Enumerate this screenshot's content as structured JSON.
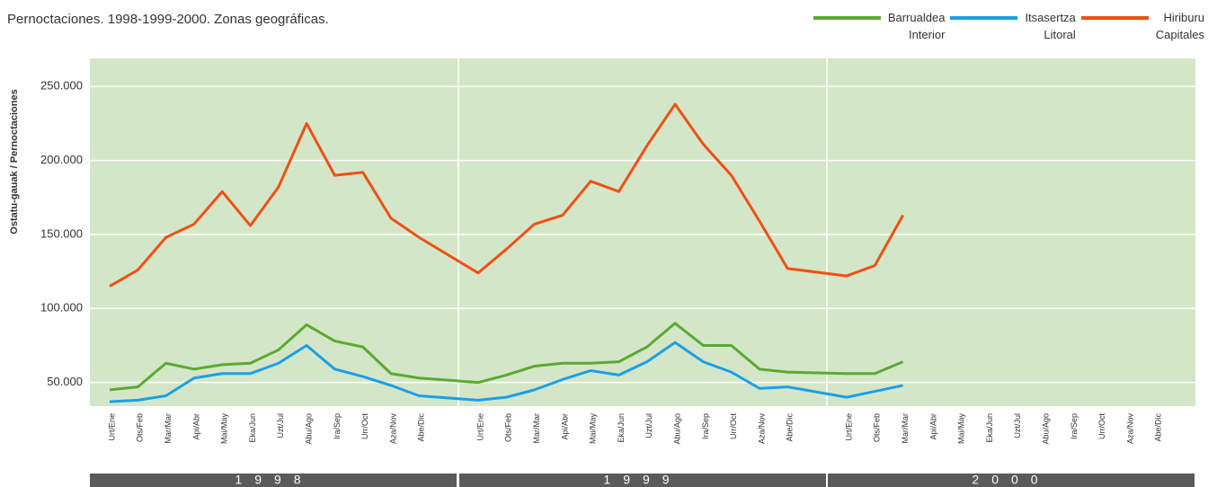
{
  "chart_data": {
    "type": "line",
    "title": "Pernoctaciones. 1998-1999-2000. Zonas geográficas.",
    "y_label": "Ostatu-gauak / Pernoctaciones",
    "years": [
      "1998",
      "1999",
      "2000"
    ],
    "categories": [
      "Urt/Ene",
      "Ots/Feb",
      "Mar/Mar",
      "Api/Abr",
      "Mai/May",
      "Eka/Jun",
      "Uzt/Jul",
      "Abu/Ago",
      "Ira/Sep",
      "Urr/Oct",
      "Aza/Nov",
      "Abe/Dic",
      "Urt/Ene",
      "Ots/Feb",
      "Mar/Mar",
      "Api/Abr",
      "Mai/May",
      "Eka/Jun",
      "Uzt/Jul",
      "Abu/Ago",
      "Ira/Sep",
      "Urr/Oct",
      "Aza/Nov",
      "Abe/Dic",
      "Urt/Ene",
      "Ots/Feb",
      "Mar/Mar",
      "Api/Abr",
      "Mai/May",
      "Eka/Jun",
      "Uzt/Jul",
      "Abu/Ago",
      "Ira/Sep",
      "Urr/Oct",
      "Aza/Nov",
      "Abe/Dic"
    ],
    "series": [
      {
        "name": "Barrualdea\nInterior",
        "color": "#5aaa32",
        "values": [
          45000,
          47000,
          63000,
          59000,
          62000,
          63000,
          72000,
          89000,
          78000,
          74000,
          56000,
          53000,
          50000,
          55000,
          61000,
          63000,
          63000,
          64000,
          74000,
          90000,
          75000,
          75000,
          59000,
          57000,
          56000,
          56000,
          64000,
          null,
          null,
          null,
          null,
          null,
          null,
          null,
          null,
          null
        ]
      },
      {
        "name": "Itsasertza\nLitoral",
        "color": "#1aa0e6",
        "values": [
          37000,
          38000,
          41000,
          53000,
          56000,
          56000,
          63000,
          75000,
          59000,
          54000,
          48000,
          41000,
          38000,
          40000,
          45000,
          52000,
          58000,
          55000,
          64000,
          77000,
          64000,
          57000,
          46000,
          47000,
          40000,
          44000,
          48000,
          null,
          null,
          null,
          null,
          null,
          null,
          null,
          null,
          null
        ]
      },
      {
        "name": "Hiriburu\nCapitales",
        "color": "#f05014",
        "values": [
          115000,
          126000,
          148000,
          157000,
          179000,
          156000,
          182000,
          225000,
          190000,
          192000,
          161000,
          148000,
          124000,
          140000,
          157000,
          163000,
          186000,
          179000,
          210000,
          238000,
          211000,
          190000,
          159000,
          127000,
          122000,
          129000,
          163000,
          null,
          null,
          null,
          null,
          null,
          null,
          null,
          null,
          null
        ]
      }
    ],
    "ylim": [
      34000,
      269000
    ],
    "yticks": [
      {
        "value": 50000,
        "label": "50.000"
      },
      {
        "value": 100000,
        "label": "100.000"
      },
      {
        "value": 150000,
        "label": "150.000"
      },
      {
        "value": 200000,
        "label": "200.000"
      },
      {
        "value": 250000,
        "label": "250.000"
      }
    ],
    "grid": true,
    "plot_background": "#d4e6c8"
  }
}
